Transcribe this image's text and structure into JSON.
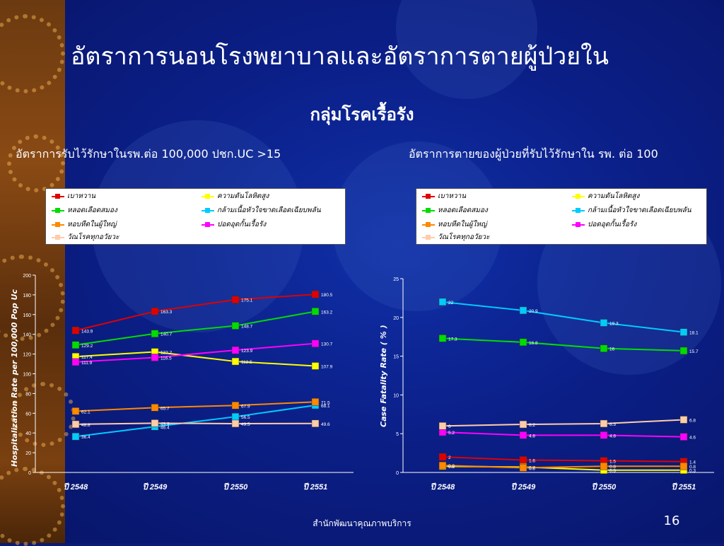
{
  "slide": {
    "title": "อัตราการนอนโรงพยาบาลและอัตราการตายผู้ป่วยใน",
    "subtitle": "กลุ่มโรคเรื้อรัง",
    "footer": "สำนักพัฒนาคุณภาพบริการ",
    "page_number": "16"
  },
  "colors": {
    "background": "#0b1f88",
    "text": "#ffffff",
    "series": [
      "#e00000",
      "#ffff00",
      "#00dd00",
      "#00ccff",
      "#ff8800",
      "#ff00ff",
      "#ffccaa"
    ]
  },
  "legend_labels": [
    "เบาหวาน",
    "ความดันโลหิตสูง",
    "หลอดเลือดสมอง",
    "กล้ามเนื้อหัวใจขาดเลือดเฉียบพลัน",
    "หอบหืดในผู้ใหญ่",
    "ปอดอุดกั้นเรื้อรัง",
    "วัณโรคทุกอวัยวะ"
  ],
  "chart_data": [
    {
      "type": "line",
      "panel_title": "อัตราการรับไว้รักษาในรพ.ต่อ 100,000 ปชก.UC >15",
      "ylabel": "Hospitalization  Rate  per 100,000 Pop Uc",
      "xlabel": "",
      "categories": [
        "ปี 2548",
        "ปี 2549",
        "ปี 2550",
        "ปี 2551"
      ],
      "ylim": [
        0,
        200
      ],
      "yticks": [
        0,
        20,
        40,
        60,
        80,
        100,
        120,
        140,
        160,
        180,
        200
      ],
      "legend_position": "top",
      "series": [
        {
          "name": "เบาหวาน",
          "values": [
            143.9,
            163.3,
            175.1,
            180.5
          ],
          "labels": [
            "143.9",
            "163.3",
            "175.1",
            "180.5"
          ]
        },
        {
          "name": "ความดันโลหิตสูง",
          "values": [
            117.4,
            122.2,
            112.5,
            107.9
          ],
          "labels": [
            "117.4",
            "122.2",
            "112.5",
            "107.9"
          ]
        },
        {
          "name": "หลอดเลือดสมอง",
          "values": [
            129.2,
            140.7,
            148.7,
            163.2
          ],
          "labels": [
            "129.2",
            "140.7",
            "148.7",
            "163.2"
          ]
        },
        {
          "name": "กล้ามเนื้อหัวใจขาดเลือดเฉียบพลัน",
          "values": [
            36.4,
            46.4,
            56.5,
            68.1
          ],
          "labels": [
            "36.4",
            "46.4",
            "56.5",
            "68.1"
          ]
        },
        {
          "name": "หอบหืดในผู้ใหญ่",
          "values": [
            62.1,
            65.7,
            67.9,
            71.5
          ],
          "labels": [
            "62.1",
            "65.7",
            "67.9",
            "71.5"
          ]
        },
        {
          "name": "ปอดอุดกั้นเรื้อรัง",
          "values": [
            111.9,
            116.5,
            123.9,
            130.7
          ],
          "labels": [
            "111.9",
            "116.5",
            "123.9",
            "130.7"
          ]
        },
        {
          "name": "วัณโรคทุกอวัยวะ",
          "values": [
            48.8,
            49.9,
            49.5,
            49.6
          ],
          "labels": [
            "48.8",
            "49.9",
            "49.5",
            "49.6"
          ]
        }
      ]
    },
    {
      "type": "line",
      "panel_title": "อัตราการตายของผู้ป่วยที่รับไว้รักษาใน รพ. ต่อ 100",
      "ylabel": "Case Fatality  Rate  ( % )",
      "xlabel": "",
      "categories": [
        "ปี 2548",
        "ปี 2549",
        "ปี 2550",
        "ปี 2551"
      ],
      "ylim": [
        0,
        25
      ],
      "yticks": [
        0,
        5,
        10,
        15,
        20,
        25
      ],
      "legend_position": "top",
      "series": [
        {
          "name": "เบาหวาน",
          "values": [
            2.0,
            1.6,
            1.5,
            1.4
          ],
          "labels": [
            "2",
            "1.6",
            "1.5",
            "1.4"
          ]
        },
        {
          "name": "ความดันโลหิตสูง",
          "values": [
            0.8,
            0.7,
            0.3,
            0.3
          ],
          "labels": [
            "0.8",
            "0.7",
            "0.3",
            "0.3"
          ]
        },
        {
          "name": "หลอดเลือดสมอง",
          "values": [
            17.3,
            16.8,
            16.0,
            15.7
          ],
          "labels": [
            "17.3",
            "16.8",
            "16",
            "15.7"
          ]
        },
        {
          "name": "กล้ามเนื้อหัวใจขาดเลือดเฉียบพลัน",
          "values": [
            22.0,
            20.9,
            19.3,
            18.1
          ],
          "labels": [
            "22",
            "20.9",
            "19.3",
            "18.1"
          ]
        },
        {
          "name": "หอบหืดในผู้ใหญ่",
          "values": [
            0.9,
            0.6,
            0.8,
            0.8
          ],
          "labels": [
            "0.9",
            "0.6",
            "0.8",
            "0.8"
          ]
        },
        {
          "name": "ปอดอุดกั้นเรื้อรัง",
          "values": [
            5.2,
            4.8,
            4.8,
            4.6
          ],
          "labels": [
            "5.2",
            "4.8",
            "4.8",
            "4.6"
          ]
        },
        {
          "name": "วัณโรคทุกอวัยวะ",
          "values": [
            6.0,
            6.2,
            6.3,
            6.8
          ],
          "labels": [
            "6",
            "6.2",
            "6.3",
            "6.8"
          ]
        }
      ]
    }
  ]
}
